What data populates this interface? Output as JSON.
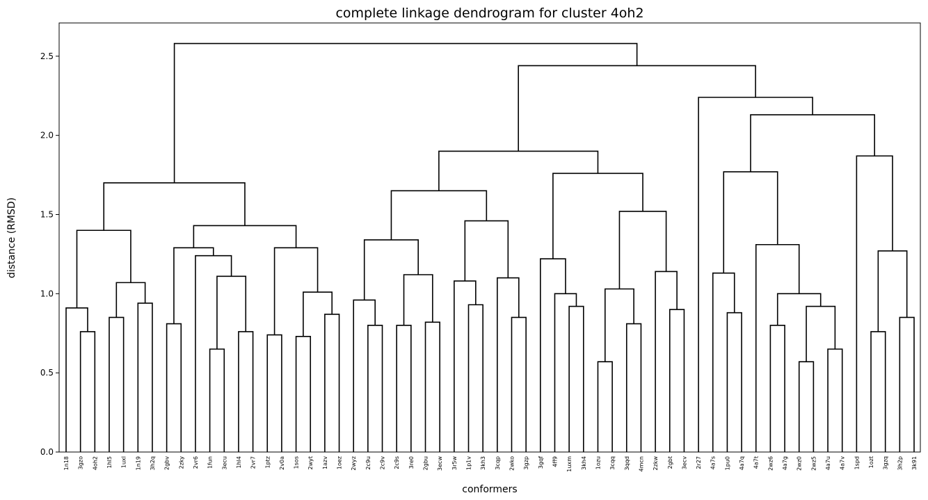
{
  "chart_data": {
    "type": "dendrogram",
    "title": "complete linkage dendrogram for cluster 4oh2",
    "xlabel": "conformers",
    "ylabel": "distance (RMSD)",
    "ylim": [
      0,
      2.71
    ],
    "yticks": [
      "0.0",
      "0.5",
      "1.0",
      "1.5",
      "2.0",
      "2.5"
    ],
    "ytick_values": [
      0,
      0.5,
      1.0,
      1.5,
      2.0,
      2.5
    ],
    "line_color": "#000000",
    "leaves": [
      "1n18",
      "3gzo",
      "4oh2",
      "1hl5",
      "1uxl",
      "1n19",
      "3h2q",
      "2gbv",
      "2zky",
      "2vr6",
      "1fun",
      "3ecu",
      "1hl4",
      "2vr7",
      "1ptz",
      "2v0a",
      "1sos",
      "2wyt",
      "1azv",
      "1oez",
      "2wyz",
      "2c9u",
      "2c9v",
      "2c9s",
      "3re0",
      "2gbu",
      "3ecw",
      "3r5w",
      "1p1v",
      "3kh3",
      "3cqp",
      "2wko",
      "3gzp",
      "3gqf",
      "4ff9",
      "1uxm",
      "3kh4",
      "1ozu",
      "3cqq",
      "3qqd",
      "4mcn",
      "2zkw",
      "2gbt",
      "3ecv",
      "2r27",
      "4a7s",
      "1pu0",
      "4a7q",
      "4a7t",
      "2wz6",
      "4a7g",
      "2wz0",
      "2wz5",
      "4a7u",
      "4a7v",
      "1spd",
      "1ozt",
      "3gzq",
      "3h2p",
      "3k91"
    ],
    "merges": [
      [
        "1n18",
        [
          "3gzo",
          "4oh2",
          0.76
        ],
        0.91
      ],
      [
        [
          "1hl5",
          "1uxl",
          0.85
        ],
        [
          "1n19",
          "3h2q",
          0.94
        ],
        1.07
      ],
      [
        [
          "1n18-grp"
        ],
        1.4
      ],
      [
        "2gbv",
        "2zky",
        0.81
      ],
      [
        "1fun",
        "3ecu",
        0.65
      ],
      [
        "1hl4",
        "2vr7",
        0.76
      ],
      [
        "1ptz",
        "2v0a",
        0.74
      ],
      [
        "1sos",
        "2wyt",
        0.73
      ],
      [
        "1azv",
        "1oez",
        0.87
      ],
      [
        "2c9u",
        "2c9v",
        0.8
      ],
      [
        "2c9s",
        "3re0",
        0.8
      ],
      [
        "2gbu",
        "3ecw",
        0.82
      ],
      [
        "1p1v",
        "3kh3",
        0.93
      ],
      [
        "2wko",
        "3gzp",
        0.85
      ],
      [
        "1uxm",
        "3kh4",
        0.92
      ],
      [
        "1ozu",
        "3cqq",
        0.57
      ],
      [
        "3qqd",
        "4mcn",
        0.81
      ],
      [
        "2gbt",
        "3ecv",
        0.9
      ],
      [
        "1pu0",
        "4a7q",
        0.88
      ],
      [
        "2wz6",
        "4a7g",
        0.8
      ],
      [
        "2wz0",
        "2wz5",
        0.57
      ],
      [
        "4a7u",
        "4a7v",
        0.65
      ],
      [
        "3gzq",
        "3h2p",
        0.76
      ],
      [
        "3k91",
        0.85
      ]
    ],
    "tree": {
      "h": 2.58,
      "l": {
        "h": 1.7,
        "l": {
          "h": 1.4,
          "l": {
            "h": 0.91,
            "l": "1n18",
            "r": {
              "h": 0.76,
              "l": "3gzo",
              "r": "4oh2"
            }
          },
          "r": {
            "h": 1.07,
            "l": {
              "h": 0.85,
              "l": "1hl5",
              "r": "1uxl"
            },
            "r": {
              "h": 0.94,
              "l": "1n19",
              "r": "3h2q"
            }
          }
        },
        "r": {
          "h": 1.43,
          "l": {
            "h": 1.29,
            "l": {
              "h": 0.81,
              "l": "2gbv",
              "r": "2zky"
            },
            "r": {
              "h": 1.24,
              "l": "2vr6",
              "r": {
                "h": 1.11,
                "l": {
                  "h": 0.65,
                  "l": "1fun",
                  "r": "3ecu"
                },
                "r": {
                  "h": 0.76,
                  "l": "1hl4",
                  "r": "2vr7"
                }
              }
            }
          },
          "r": {
            "h": 1.29,
            "l": {
              "h": 0.74,
              "l": "1ptz",
              "r": "2v0a"
            },
            "r": {
              "h": 1.01,
              "l": {
                "h": 0.73,
                "l": "1sos",
                "r": "2wyt"
              },
              "r": {
                "h": 0.87,
                "l": "1azv",
                "r": "1oez"
              }
            }
          }
        }
      },
      "r": {
        "h": 2.44,
        "l": {
          "h": 1.9,
          "l": {
            "h": 1.65,
            "l": {
              "h": 1.34,
              "l": {
                "h": 0.96,
                "l": "2wyz",
                "r": {
                  "h": 0.8,
                  "l": "2c9u",
                  "r": "2c9v"
                }
              },
              "r": {
                "h": 1.12,
                "l": {
                  "h": 0.8,
                  "l": "2c9s",
                  "r": "3re0"
                },
                "r": {
                  "h": 0.82,
                  "l": "2gbu",
                  "r": "3ecw"
                }
              }
            },
            "r": {
              "h": 1.46,
              "l": {
                "h": 1.08,
                "l": "3r5w",
                "r": {
                  "h": 0.93,
                  "l": "1p1v",
                  "r": "3kh3"
                }
              },
              "r": {
                "h": 1.1,
                "l": "3cqp",
                "r": {
                  "h": 0.85,
                  "l": "2wko",
                  "r": "3gzp"
                }
              }
            }
          },
          "r": {
            "h": 1.76,
            "l": {
              "h": 1.22,
              "l": "3gqf",
              "r": {
                "h": 1.0,
                "l": "4ff9",
                "r": {
                  "h": 0.92,
                  "l": "1uxm",
                  "r": "3kh4"
                }
              }
            },
            "r": {
              "h": 1.52,
              "l": {
                "h": 1.03,
                "l": {
                  "h": 0.57,
                  "l": "1ozu",
                  "r": "3cqq"
                },
                "r": {
                  "h": 0.81,
                  "l": "3qqd",
                  "r": "4mcn"
                }
              },
              "r": {
                "h": 1.14,
                "l": "2zkw",
                "r": {
                  "h": 0.9,
                  "l": "2gbt",
                  "r": "3ecv"
                }
              }
            }
          }
        },
        "r": {
          "h": 2.24,
          "l": "2r27",
          "r": {
            "h": 2.13,
            "l": {
              "h": 1.77,
              "l": {
                "h": 1.13,
                "l": "4a7s",
                "r": {
                  "h": 0.88,
                  "l": "1pu0",
                  "r": "4a7q"
                }
              },
              "r": {
                "h": 1.31,
                "l": "4a7t",
                "r": {
                  "h": 1.0,
                  "l": {
                    "h": 0.8,
                    "l": "2wz6",
                    "r": "4a7g"
                  },
                  "r": {
                    "h": 0.92,
                    "l": {
                      "h": 0.57,
                      "l": "2wz0",
                      "r": "2wz5"
                    },
                    "r": {
                      "h": 0.65,
                      "l": "4a7u",
                      "r": "4a7v"
                    }
                  }
                }
              }
            },
            "r": {
              "h": 1.87,
              "l": "1spd",
              "r": {
                "h": 1.27,
                "l": "1ozt",
                "r": {
                  "h": 1.27,
                  "l": {
                    "h": 0.76,
                    "l": "3gzq",
                    "r": "3h2p"
                  },
                  "r": {
                    "h": 0.85,
                    "l": "3k91",
                    "r": null
                  }
                }
              }
            }
          }
        }
      }
    }
  }
}
